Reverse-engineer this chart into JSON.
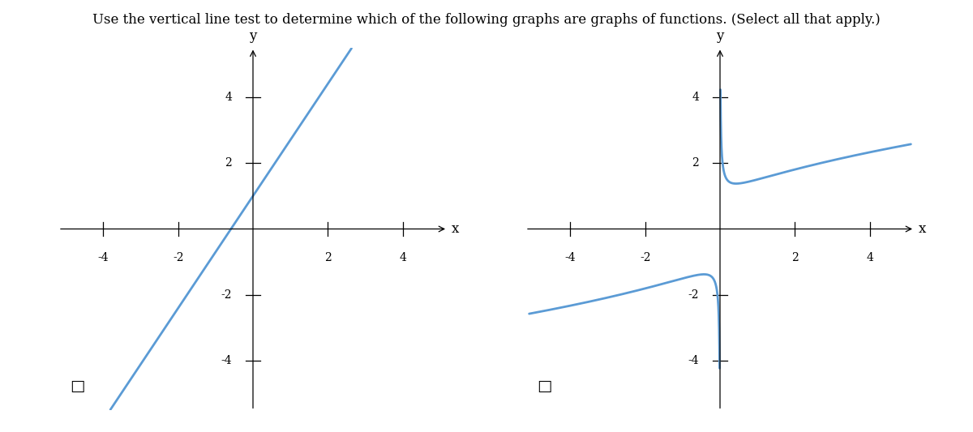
{
  "title": "Use the vertical line test to determine which of the following graphs are graphs of functions. (Select all that apply.)",
  "title_fontsize": 12,
  "line_color": "#5b9bd5",
  "line_width": 2.0,
  "background_color": "#ffffff",
  "graph1": {
    "xlim": [
      -5.2,
      5.2
    ],
    "ylim": [
      -5.5,
      5.5
    ],
    "xticks": [
      -4,
      -2,
      2,
      4
    ],
    "yticks": [
      -4,
      -2,
      2,
      4
    ],
    "slope": 1.7,
    "intercept": 1.0,
    "x_start": -4.8,
    "x_end": 2.8
  },
  "graph2": {
    "xlim": [
      -5.2,
      5.2
    ],
    "ylim": [
      -5.5,
      5.5
    ],
    "xticks": [
      -4,
      -2,
      2,
      4
    ],
    "yticks": [
      -4,
      -2,
      2,
      4
    ],
    "upper_A": 0.45,
    "upper_B": 1.05,
    "x_min_upper": 0.012,
    "x_max_upper": 5.1
  }
}
